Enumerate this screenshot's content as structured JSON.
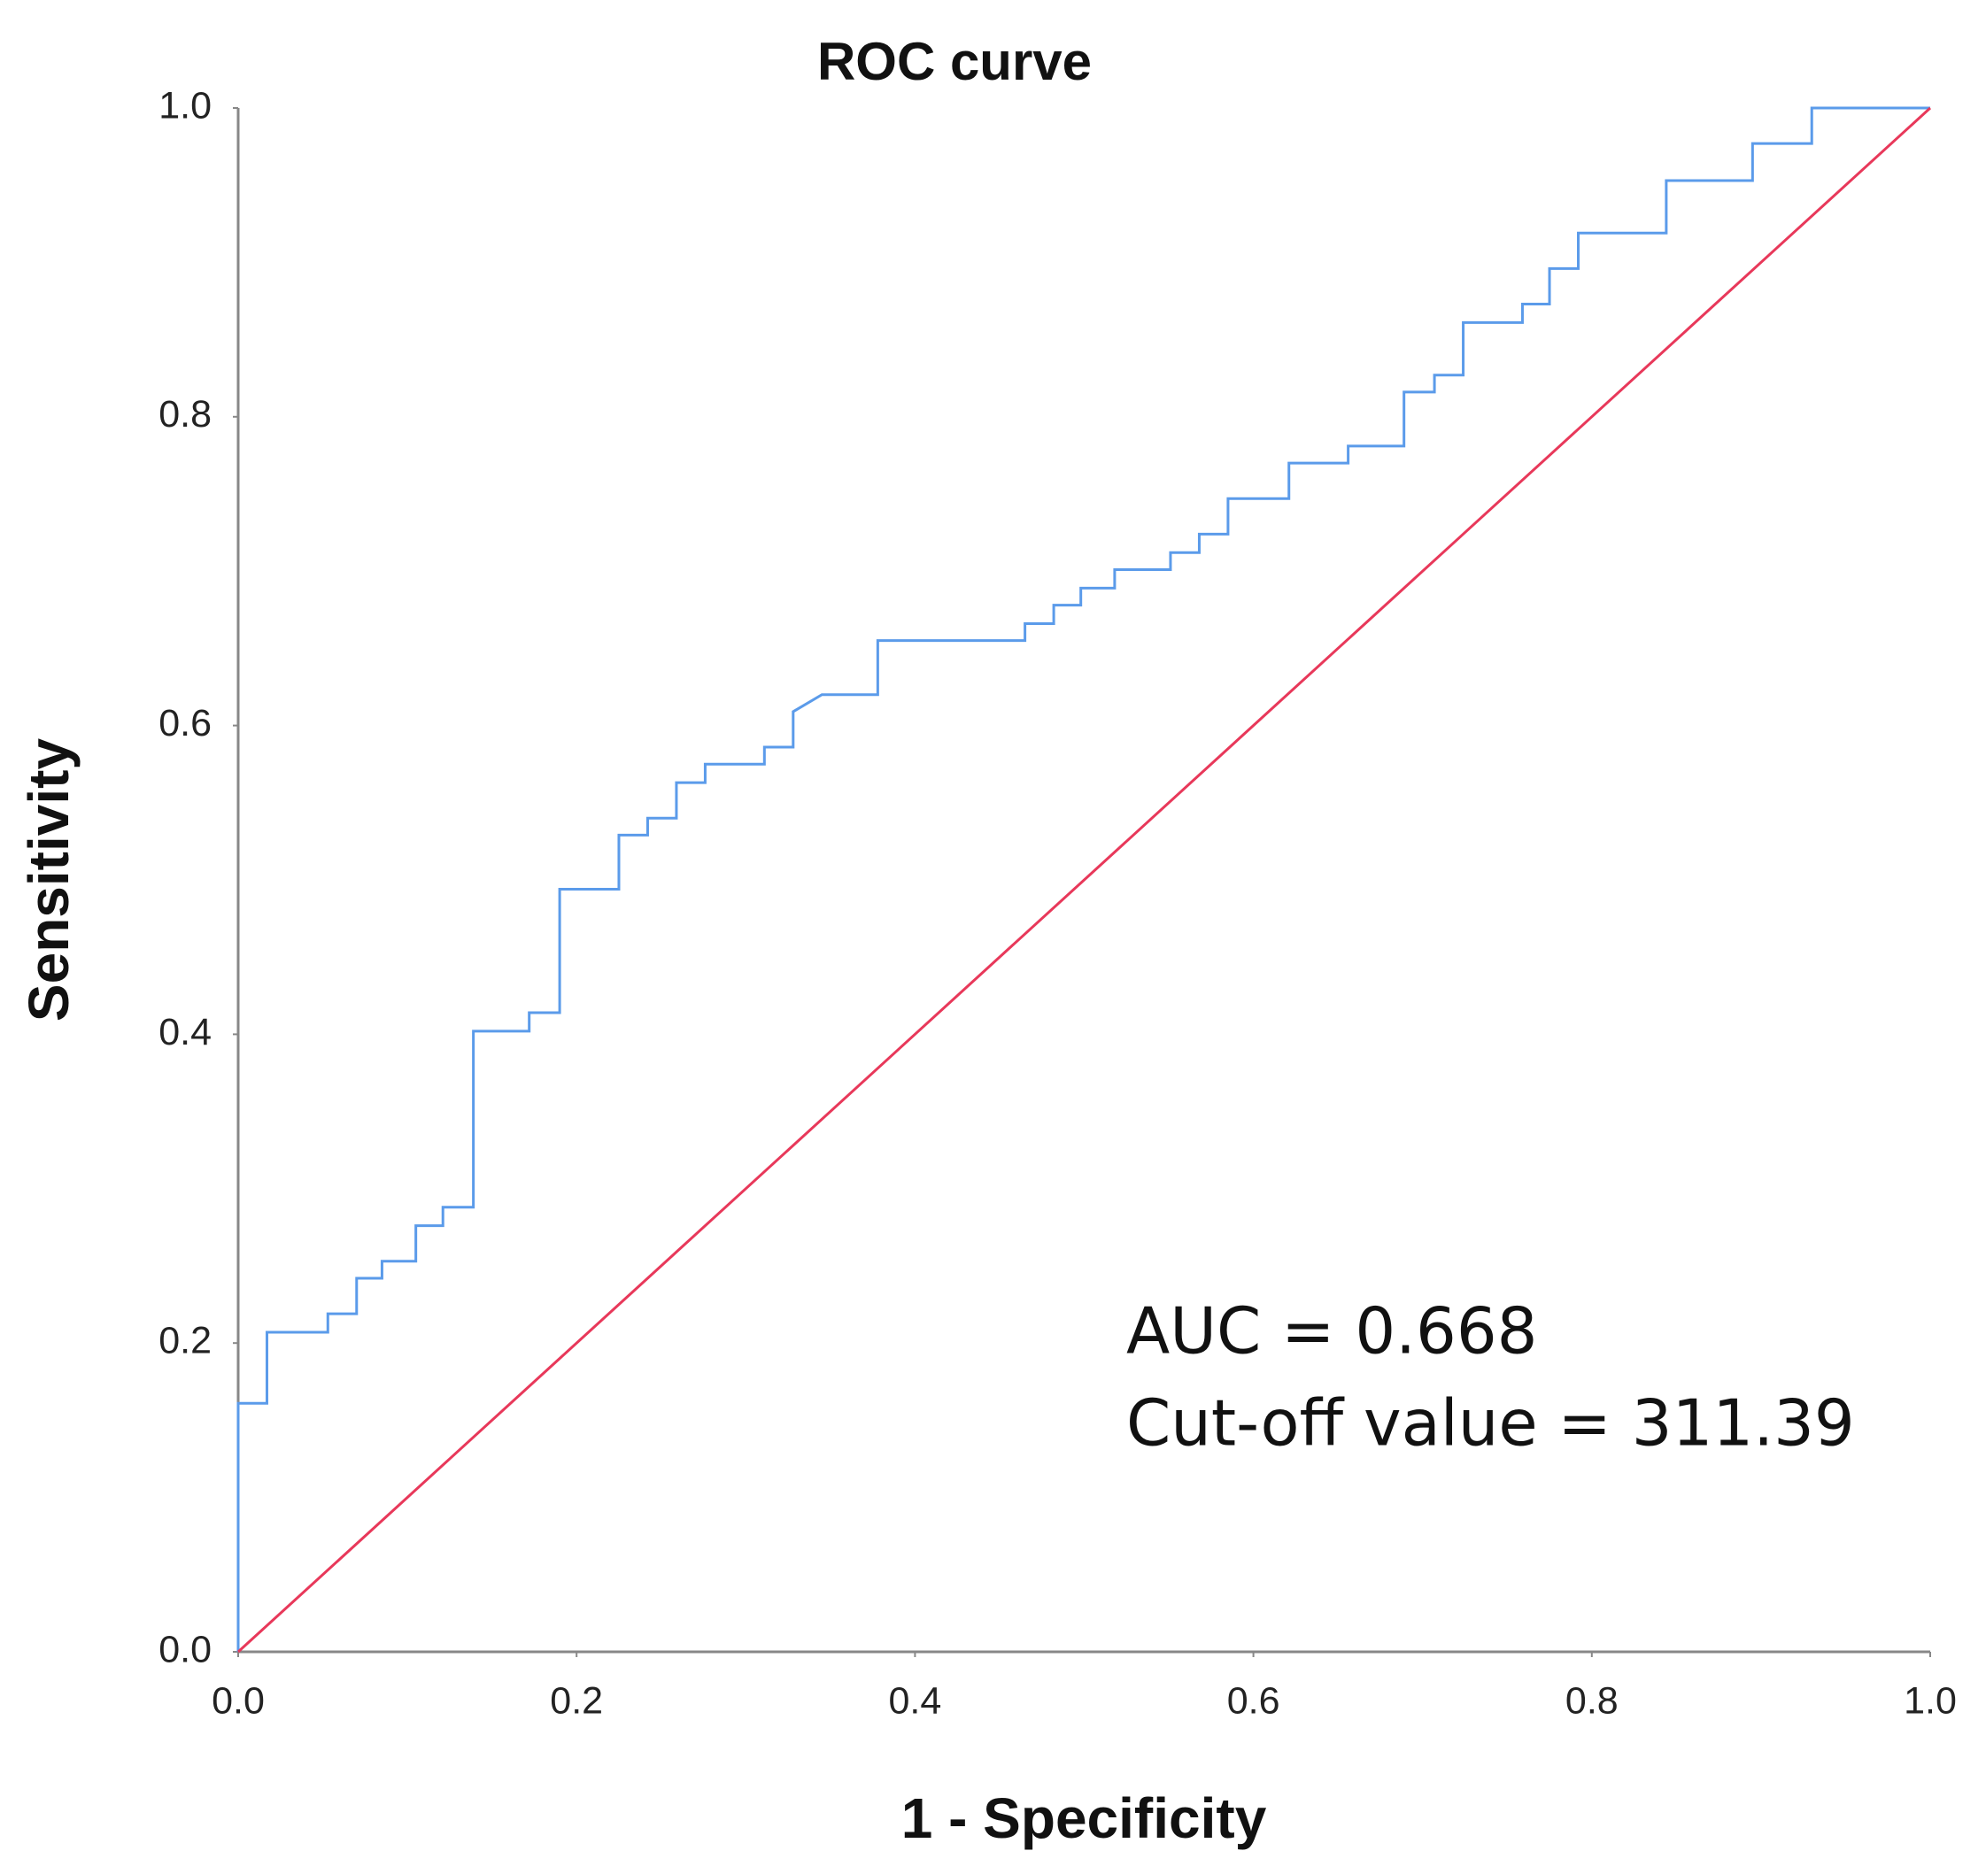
{
  "chart_data": {
    "type": "line",
    "title": "ROC curve",
    "xlabel": "1 - Specificity",
    "ylabel": "Sensitivity",
    "annotations": [
      "AUC = 0.668",
      "Cut-off value = 311.39"
    ],
    "xlim": [
      0,
      1
    ],
    "ylim": [
      0,
      1
    ],
    "xticks": [
      {
        "value": 0,
        "label": "0.0"
      },
      0.2,
      0.4,
      0.6,
      0.8,
      {
        "value": 1,
        "label": "1.0"
      }
    ],
    "yticks": [
      {
        "value": 0,
        "label": "0.0"
      },
      0.2,
      0.4,
      0.6,
      0.8,
      {
        "value": 1,
        "label": "1.0"
      }
    ],
    "grid": false,
    "series": [
      {
        "color": "#5b9bea",
        "x": [
          0,
          0,
          0.017,
          0.017,
          0.053,
          0.053,
          0.07,
          0.07,
          0.085,
          0.085,
          0.105,
          0.105,
          0.121,
          0.121,
          0.139,
          0.139,
          0.172,
          0.172,
          0.19,
          0.19,
          0.225,
          0.225,
          0.242,
          0.242,
          0.259,
          0.259,
          0.276,
          0.276,
          0.311,
          0.311,
          0.328,
          0.328,
          0.345,
          0.378,
          0.378,
          0.465,
          0.465,
          0.482,
          0.482,
          0.498,
          0.498,
          0.518,
          0.518,
          0.551,
          0.551,
          0.568,
          0.568,
          0.585,
          0.585,
          0.621,
          0.621,
          0.656,
          0.656,
          0.689,
          0.689,
          0.707,
          0.707,
          0.724,
          0.724,
          0.759,
          0.759,
          0.775,
          0.775,
          0.792,
          0.792,
          0.844,
          0.844,
          0.895,
          0.895,
          0.93,
          0.93,
          1.0
        ],
        "values": [
          0,
          0.161,
          0.161,
          0.207,
          0.207,
          0.219,
          0.219,
          0.242,
          0.242,
          0.253,
          0.253,
          0.276,
          0.276,
          0.288,
          0.288,
          0.402,
          0.402,
          0.414,
          0.414,
          0.494,
          0.494,
          0.529,
          0.529,
          0.54,
          0.54,
          0.563,
          0.563,
          0.575,
          0.575,
          0.586,
          0.586,
          0.609,
          0.62,
          0.62,
          0.655,
          0.655,
          0.666,
          0.666,
          0.678,
          0.678,
          0.689,
          0.689,
          0.701,
          0.701,
          0.712,
          0.712,
          0.724,
          0.724,
          0.747,
          0.747,
          0.77,
          0.77,
          0.781,
          0.781,
          0.816,
          0.816,
          0.827,
          0.827,
          0.861,
          0.861,
          0.873,
          0.873,
          0.896,
          0.896,
          0.919,
          0.919,
          0.953,
          0.953,
          0.977,
          0.977,
          1.0,
          1.0
        ]
      },
      {
        "color": "#e8385a",
        "x": [
          0,
          1
        ],
        "values": [
          0,
          1
        ]
      }
    ]
  }
}
